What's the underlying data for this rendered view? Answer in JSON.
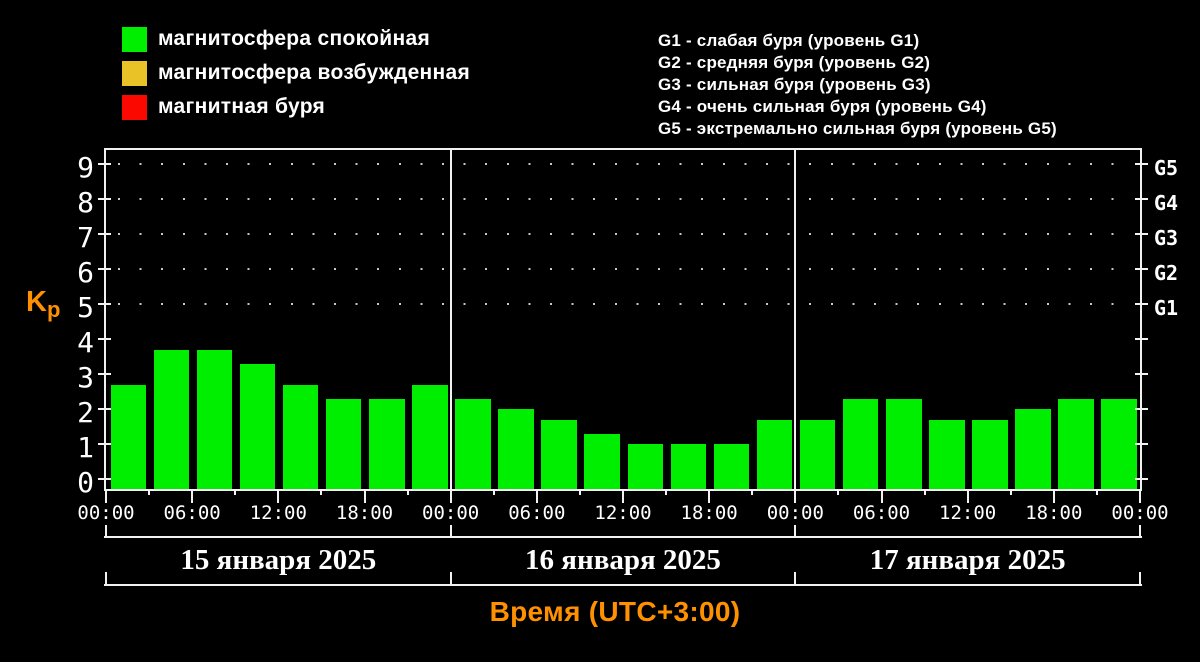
{
  "legend": {
    "items": [
      {
        "name": "quiet",
        "label": "магнитосфера спокойная",
        "color": "#00ee00"
      },
      {
        "name": "disturbed",
        "label": "магнитосфера возбужденная",
        "color": "#e9c227"
      },
      {
        "name": "storm",
        "label": "магнитная буря",
        "color": "#fb0900"
      }
    ]
  },
  "storm_levels": {
    "lines": [
      "G1 - слабая буря (уровень G1)",
      "G2 - средняя буря (уровень G2)",
      "G3 - сильная буря (уровень G3)",
      "G4 - очень сильная буря (уровень G4)",
      "G5 - экстремально сильная буря (уровень G5)"
    ]
  },
  "chart_data": {
    "type": "bar",
    "ylabel_main": "K",
    "ylabel_sub": "p",
    "xlabel": "Время (UTC+3:00)",
    "ylim": [
      0,
      9
    ],
    "yticks": [
      0,
      1,
      2,
      3,
      4,
      5,
      6,
      7,
      8,
      9
    ],
    "right_axis_labels": [
      {
        "label": "G1",
        "level": 5
      },
      {
        "label": "G2",
        "level": 6
      },
      {
        "label": "G3",
        "level": 7
      },
      {
        "label": "G4",
        "level": 8
      },
      {
        "label": "G5",
        "level": 9
      }
    ],
    "grid_dot_levels": [
      5,
      6,
      7,
      8,
      9
    ],
    "bar_interval_hours": 3,
    "x_tick_interval_hours": 3,
    "x_label_interval_hours": 6,
    "time_labels_cycle": [
      "00:00",
      "06:00",
      "12:00",
      "18:00"
    ],
    "end_time_label": "00:00",
    "bar_color": "#00ee00",
    "days": [
      {
        "date": "15 января 2025",
        "values": [
          2.7,
          3.7,
          3.7,
          3.3,
          2.7,
          2.3,
          2.3,
          2.7
        ]
      },
      {
        "date": "16 января 2025",
        "values": [
          2.3,
          2.0,
          1.7,
          1.3,
          1.0,
          1.0,
          1.0,
          1.7
        ]
      },
      {
        "date": "17 января 2025",
        "values": [
          1.7,
          2.3,
          2.3,
          1.7,
          1.7,
          2.0,
          2.3,
          2.3
        ]
      }
    ]
  },
  "colors": {
    "background": "#000000",
    "axis": "#f2f2f2",
    "text": "#ffffff",
    "accent_orange": "#ff9100",
    "grid_dots": "#c9c9c9"
  }
}
